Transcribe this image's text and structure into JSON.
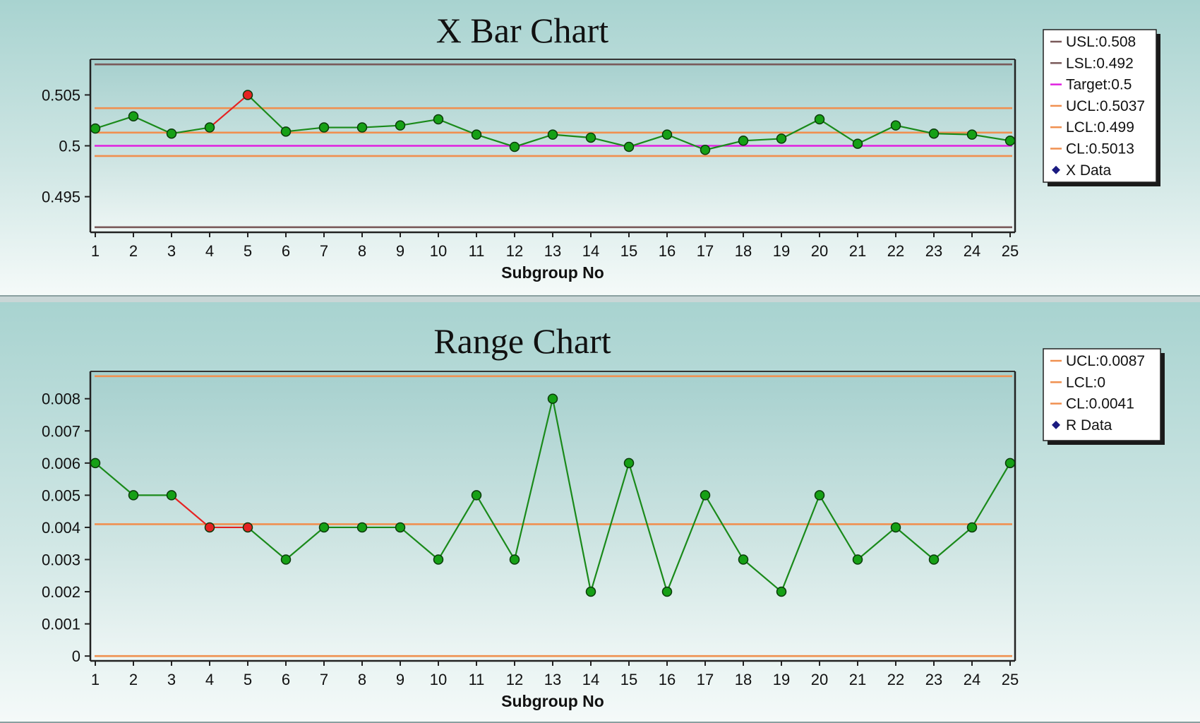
{
  "chart_data": [
    {
      "type": "line",
      "title": "X Bar Chart",
      "xlabel": "Subgroup No",
      "ylabel": "",
      "xlim": [
        1,
        25
      ],
      "ylim": [
        0.4915,
        0.5085
      ],
      "yticks": [
        "0.495",
        "0.5",
        "0.505"
      ],
      "ytick_values": [
        0.495,
        0.5,
        0.505
      ],
      "x": [
        1,
        2,
        3,
        4,
        5,
        6,
        7,
        8,
        9,
        10,
        11,
        12,
        13,
        14,
        15,
        16,
        17,
        18,
        19,
        20,
        21,
        22,
        23,
        24,
        25
      ],
      "series": [
        {
          "name": "X Data",
          "values": [
            0.5017,
            0.5029,
            0.5012,
            0.5018,
            0.505,
            0.5014,
            0.5018,
            0.5018,
            0.502,
            0.5026,
            0.5011,
            0.4999,
            0.5011,
            0.5008,
            0.4999,
            0.5011,
            0.4996,
            0.5005,
            0.5007,
            0.5026,
            0.5002,
            0.502,
            0.5012,
            0.5011,
            0.5005
          ],
          "color": "#1a8a1a",
          "marker_color": "#0c6b0c",
          "out_of_control": [
            5
          ],
          "alert_color": "#e52222"
        }
      ],
      "reference_lines": [
        {
          "name": "USL:0.508",
          "value": 0.508,
          "color": "#7a5a5a"
        },
        {
          "name": "LSL:0.492",
          "value": 0.492,
          "color": "#7a5a5a"
        },
        {
          "name": "Target:0.5",
          "value": 0.5,
          "color": "#e020e0"
        },
        {
          "name": "UCL:0.5037",
          "value": 0.5037,
          "color": "#f09050"
        },
        {
          "name": "LCL:0.499",
          "value": 0.499,
          "color": "#f09050"
        },
        {
          "name": "CL:0.5013",
          "value": 0.5013,
          "color": "#f09050"
        }
      ],
      "legend": [
        "USL:0.508",
        "LSL:0.492",
        "Target:0.5",
        "UCL:0.5037",
        "LCL:0.499",
        "CL:0.5013",
        "X Data"
      ],
      "legend_placement": "right",
      "grid": false
    },
    {
      "type": "line",
      "title": "Range Chart",
      "xlabel": "Subgroup No",
      "ylabel": "",
      "xlim": [
        1,
        25
      ],
      "ylim": [
        -0.00015,
        0.00885
      ],
      "yticks": [
        "0",
        "0.001",
        "0.002",
        "0.003",
        "0.004",
        "0.005",
        "0.006",
        "0.007",
        "0.008"
      ],
      "ytick_values": [
        0,
        0.001,
        0.002,
        0.003,
        0.004,
        0.005,
        0.006,
        0.007,
        0.008
      ],
      "x": [
        1,
        2,
        3,
        4,
        5,
        6,
        7,
        8,
        9,
        10,
        11,
        12,
        13,
        14,
        15,
        16,
        17,
        18,
        19,
        20,
        21,
        22,
        23,
        24,
        25
      ],
      "series": [
        {
          "name": "R Data",
          "values": [
            0.006,
            0.005,
            0.005,
            0.004,
            0.004,
            0.003,
            0.004,
            0.004,
            0.004,
            0.003,
            0.005,
            0.003,
            0.008,
            0.002,
            0.006,
            0.002,
            0.005,
            0.003,
            0.002,
            0.005,
            0.003,
            0.004,
            0.003,
            0.004,
            0.006
          ],
          "color": "#1a8a1a",
          "marker_color": "#0c6b0c",
          "out_of_control": [
            4,
            5
          ],
          "alert_color": "#e52222"
        }
      ],
      "reference_lines": [
        {
          "name": "UCL:0.0087",
          "value": 0.0087,
          "color": "#f09050"
        },
        {
          "name": "LCL:0",
          "value": 0,
          "color": "#f09050"
        },
        {
          "name": "CL:0.0041",
          "value": 0.0041,
          "color": "#f09050"
        }
      ],
      "legend": [
        "UCL:0.0087",
        "LCL:0",
        "CL:0.0041",
        "R Data"
      ],
      "legend_placement": "right",
      "grid": false
    }
  ]
}
